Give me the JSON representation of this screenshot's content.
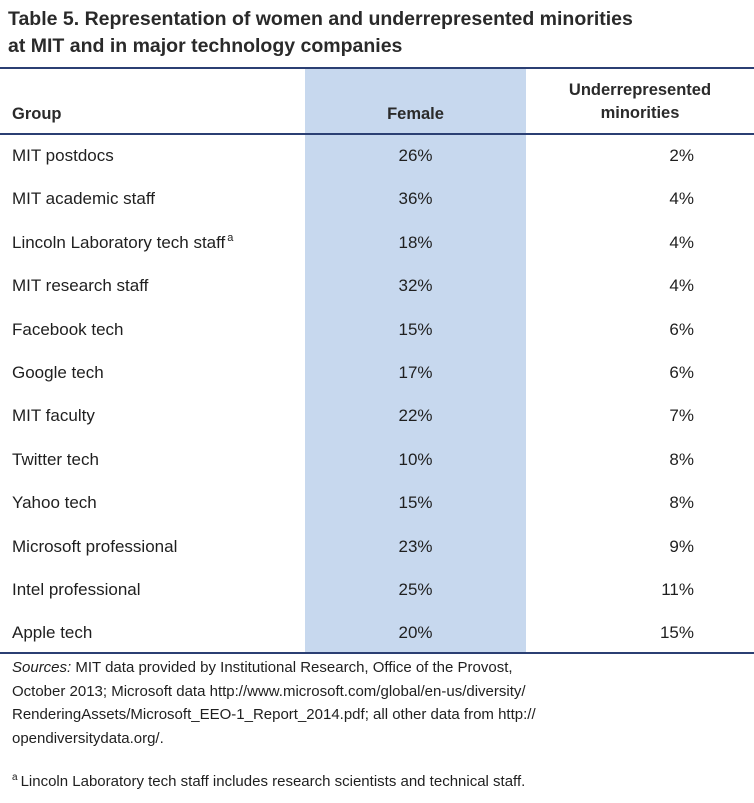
{
  "title": {
    "line1": "Table 5. Representation of women and underrepresented minorities",
    "line2": "at MIT and in major technology companies"
  },
  "headers": {
    "group": "Group",
    "female": "Female",
    "urm_line1": "Underrepresented",
    "urm_line2": "minorities"
  },
  "rows": [
    {
      "group": "MIT postdocs",
      "female": "26%",
      "urm": "2%",
      "note": ""
    },
    {
      "group": "MIT academic staff",
      "female": "36%",
      "urm": "4%",
      "note": ""
    },
    {
      "group": "Lincoln Laboratory tech staff",
      "female": "18%",
      "urm": "4%",
      "note": "a"
    },
    {
      "group": "MIT research staff",
      "female": "32%",
      "urm": "4%",
      "note": ""
    },
    {
      "group": "Facebook tech",
      "female": "15%",
      "urm": "6%",
      "note": ""
    },
    {
      "group": "Google tech",
      "female": "17%",
      "urm": "6%",
      "note": ""
    },
    {
      "group": "MIT faculty",
      "female": "22%",
      "urm": "7%",
      "note": ""
    },
    {
      "group": "Twitter tech",
      "female": "10%",
      "urm": "8%",
      "note": ""
    },
    {
      "group": "Yahoo tech",
      "female": "15%",
      "urm": "8%",
      "note": ""
    },
    {
      "group": "Microsoft professional",
      "female": "23%",
      "urm": "9%",
      "note": ""
    },
    {
      "group": "Intel professional",
      "female": "25%",
      "urm": "11%",
      "note": ""
    },
    {
      "group": "Apple tech",
      "female": "20%",
      "urm": "15%",
      "note": ""
    }
  ],
  "sources": {
    "label": "Sources:",
    "line1": " MIT data provided by Institutional Research, Office of the Provost,",
    "line2": "October 2013; Microsoft data http://www.microsoft.com/global/en-us/diversity/",
    "line3": "RenderingAssets/Microsoft_EEO-1_Report_2014.pdf; all other data from http://",
    "line4": "opendiversitydata.org/."
  },
  "footnote": {
    "marker": "a",
    "text": "Lincoln Laboratory tech staff includes research scientists and technical staff."
  },
  "colors": {
    "rule": "#2b3f73",
    "female_band": "#c7d8ee"
  }
}
